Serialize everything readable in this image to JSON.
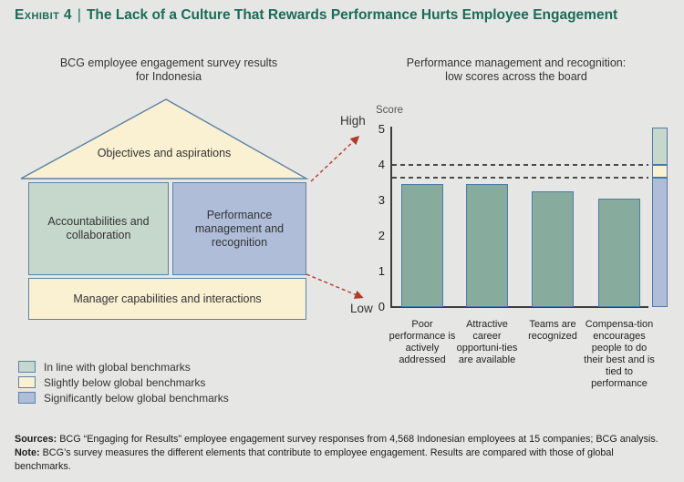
{
  "header": {
    "exhibit_label": "Exhibit 4",
    "separator": "|",
    "title": "The Lack of a Culture That Rewards Performance Hurts Employee Engagement"
  },
  "left_panel": {
    "heading": "BCG employee engagement survey results for Indonesia",
    "house": {
      "roof_label": "Objectives and aspirations",
      "left_box_label": "Accountabilities and collaboration",
      "right_box_label": "Performance management and recognition",
      "bottom_box_label": "Manager capabilities and interactions"
    }
  },
  "right_panel": {
    "heading": "Performance management and recognition: low scores across the board",
    "axis_high_label": "High",
    "axis_low_label": "Low"
  },
  "legend": {
    "items": [
      {
        "label": "In line with global benchmarks",
        "color": "#C6D8CB"
      },
      {
        "label": "Slightly below global benchmarks",
        "color": "#FAF0D2"
      },
      {
        "label": "Significantly below global benchmarks",
        "color": "#AFBDD9"
      }
    ]
  },
  "chart_data": {
    "type": "bar",
    "title": "Performance management and recognition: low scores across the board",
    "ylabel": "Score",
    "ylim": [
      0,
      5
    ],
    "yticks": [
      5,
      4,
      3,
      2,
      1,
      0
    ],
    "categories": [
      "Poor performance is actively addressed",
      "Attractive career opportuni-ties are available",
      "Teams are recognized",
      "Compensa-tion encourages people to do their best and is tied to performance"
    ],
    "values": [
      3.45,
      3.45,
      3.25,
      3.05
    ],
    "bar_color": "#87AC9D",
    "bar_border_color": "#4A7BA6",
    "benchmark_dashed_lines": [
      4.0,
      3.65
    ],
    "reference_bar_segments": [
      {
        "from": 4.0,
        "to": 5.05,
        "color": "#C6D8CB",
        "meaning": "In line with global benchmarks"
      },
      {
        "from": 3.65,
        "to": 4.0,
        "color": "#FAF0D2",
        "meaning": "Slightly below global benchmarks"
      },
      {
        "from": 0,
        "to": 3.65,
        "color": "#AFBDD9",
        "meaning": "Significantly below global benchmarks"
      }
    ],
    "grid": false,
    "legend_position": "bottom-left"
  },
  "footer": {
    "sources_label": "Sources:",
    "sources_text": "BCG “Engaging for Results” employee engagement survey responses from 4,568 Indonesian employees at 15  companies; BCG analysis.",
    "note_label": "Note:",
    "note_text": "BCG’s survey measures the different elements that contribute to employee engagement. Results are compared with those of global benchmarks."
  },
  "colors": {
    "background": "#E6E7E5",
    "title_green": "#1A6B58",
    "house_cream": "#FAF0D2",
    "house_green": "#C6D8CB",
    "house_blue": "#AFBDD9",
    "box_border": "#5B82A8",
    "arrow_red": "#B5382A"
  }
}
